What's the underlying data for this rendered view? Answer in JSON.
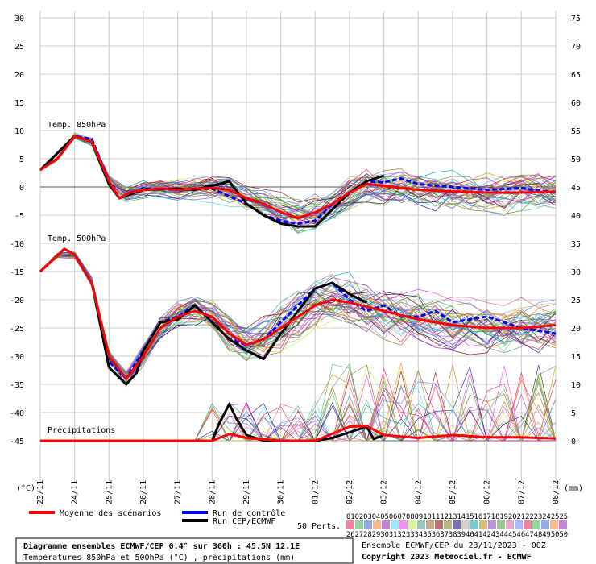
{
  "chart_data": {
    "type": "line",
    "x_dates": [
      "23/11",
      "24/11",
      "25/11",
      "26/11",
      "27/11",
      "28/11",
      "29/11",
      "30/11",
      "01/12",
      "02/12",
      "03/12",
      "04/12",
      "05/12",
      "06/12",
      "07/12",
      "08/12"
    ],
    "left_ticks": [
      "30",
      "25",
      "20",
      "15",
      "10",
      "5",
      "0",
      "-5",
      "-10",
      "-15",
      "-20",
      "-25",
      "-30",
      "-35",
      "-40",
      "-45"
    ],
    "right_ticks": [
      "75",
      "70",
      "65",
      "60",
      "55",
      "50",
      "45",
      "40",
      "35",
      "30",
      "25",
      "20",
      "15",
      "10",
      "5",
      "0"
    ],
    "left_unit": "(°C)",
    "right_unit": "(mm)",
    "left_ylim": [
      -45,
      30
    ],
    "right_ylim": [
      0,
      75
    ],
    "panel_labels": {
      "t850": "Temp. 850hPa",
      "t500": "Temp. 500hPa",
      "precip": "Précipitations"
    },
    "series": [
      {
        "name": "Moyenne des scénarios",
        "color": "#ff0000",
        "panel": "t850",
        "points": [
          [
            0,
            3
          ],
          [
            0.5,
            5
          ],
          [
            1,
            9
          ],
          [
            1.5,
            8
          ],
          [
            2,
            1
          ],
          [
            2.3,
            -2
          ],
          [
            2.6,
            -1
          ],
          [
            3,
            -0.5
          ],
          [
            3.5,
            -0.3
          ],
          [
            4,
            -0.5
          ],
          [
            4.5,
            -0.3
          ],
          [
            5,
            -0.2
          ],
          [
            5.5,
            -0.5
          ],
          [
            6,
            -2
          ],
          [
            6.5,
            -3
          ],
          [
            7,
            -4.5
          ],
          [
            7.5,
            -5.5
          ],
          [
            8,
            -4.5
          ],
          [
            8.5,
            -3
          ],
          [
            9,
            -1
          ],
          [
            9.5,
            0.5
          ],
          [
            10,
            0.2
          ],
          [
            11,
            -0.5
          ],
          [
            12,
            -0.8
          ],
          [
            13,
            -1
          ],
          [
            14,
            -1
          ],
          [
            15,
            -0.8
          ]
        ]
      },
      {
        "name": "Run de contrôle",
        "color": "#0000ff",
        "panel": "t850",
        "points": [
          [
            0,
            3
          ],
          [
            1,
            9
          ],
          [
            1.5,
            8.5
          ],
          [
            2,
            1
          ],
          [
            2.3,
            -2
          ],
          [
            3,
            -0.3
          ],
          [
            4,
            -0.5
          ],
          [
            5,
            -0.3
          ],
          [
            6,
            -3
          ],
          [
            6.5,
            -5
          ],
          [
            7,
            -6
          ],
          [
            7.5,
            -6.5
          ],
          [
            8,
            -6
          ],
          [
            8.5,
            -3
          ],
          [
            9,
            -1
          ],
          [
            9.5,
            1
          ],
          [
            10,
            0.8
          ],
          [
            10.5,
            1.5
          ],
          [
            11,
            0.5
          ],
          [
            12,
            0
          ],
          [
            13,
            -0.5
          ],
          [
            14,
            -0.2
          ],
          [
            15,
            -1
          ]
        ]
      },
      {
        "name": "Run CEP/ECMWF",
        "color": "#000000",
        "panel": "t850",
        "points": [
          [
            0,
            3
          ],
          [
            1,
            9
          ],
          [
            1.5,
            8
          ],
          [
            2,
            0.5
          ],
          [
            2.3,
            -2
          ],
          [
            3,
            -0.5
          ],
          [
            4,
            -0.3
          ],
          [
            4.5,
            -0.5
          ],
          [
            5.2,
            0.5
          ],
          [
            5.5,
            1
          ],
          [
            6,
            -3
          ],
          [
            6.5,
            -5
          ],
          [
            7,
            -6.5
          ],
          [
            7.5,
            -7
          ],
          [
            8,
            -7
          ],
          [
            8.5,
            -4
          ],
          [
            9,
            -1
          ],
          [
            9.5,
            1
          ],
          [
            10,
            2
          ]
        ]
      },
      {
        "name": "Moyenne des scénarios",
        "color": "#ff0000",
        "panel": "t500",
        "points": [
          [
            0,
            -15
          ],
          [
            0.7,
            -11
          ],
          [
            1,
            -12
          ],
          [
            1.5,
            -17
          ],
          [
            2,
            -30
          ],
          [
            2.5,
            -34
          ],
          [
            3,
            -30
          ],
          [
            3.5,
            -25
          ],
          [
            4,
            -23
          ],
          [
            4.5,
            -22
          ],
          [
            5,
            -23
          ],
          [
            5.5,
            -26
          ],
          [
            6,
            -28
          ],
          [
            6.5,
            -27
          ],
          [
            7,
            -25
          ],
          [
            7.5,
            -23
          ],
          [
            8,
            -21
          ],
          [
            8.5,
            -20
          ],
          [
            9,
            -20.5
          ],
          [
            10,
            -22
          ],
          [
            11,
            -23.5
          ],
          [
            12,
            -24.5
          ],
          [
            13,
            -25
          ],
          [
            14,
            -25
          ],
          [
            15,
            -24.5
          ]
        ]
      },
      {
        "name": "Run de contrôle",
        "color": "#0000ff",
        "panel": "t500",
        "points": [
          [
            0,
            -15
          ],
          [
            0.7,
            -11
          ],
          [
            1,
            -12
          ],
          [
            1.5,
            -17
          ],
          [
            2,
            -31
          ],
          [
            2.5,
            -34
          ],
          [
            3,
            -29
          ],
          [
            3.5,
            -24
          ],
          [
            4,
            -23
          ],
          [
            4.5,
            -21
          ],
          [
            5,
            -24
          ],
          [
            5.5,
            -27
          ],
          [
            6,
            -28
          ],
          [
            6.5,
            -27
          ],
          [
            7,
            -24
          ],
          [
            7.5,
            -21
          ],
          [
            8,
            -18
          ],
          [
            8.5,
            -17
          ],
          [
            9,
            -20
          ],
          [
            9.5,
            -22
          ],
          [
            10,
            -21
          ],
          [
            10.5,
            -23
          ],
          [
            11,
            -23
          ],
          [
            11.5,
            -22
          ],
          [
            12,
            -24
          ],
          [
            13,
            -23
          ],
          [
            14,
            -25
          ],
          [
            15,
            -26
          ]
        ]
      },
      {
        "name": "Run CEP/ECMWF",
        "color": "#000000",
        "panel": "t500",
        "points": [
          [
            0,
            -15
          ],
          [
            0.7,
            -11
          ],
          [
            1,
            -12
          ],
          [
            1.5,
            -17
          ],
          [
            2,
            -32
          ],
          [
            2.5,
            -35
          ],
          [
            2.8,
            -33
          ],
          [
            3,
            -29
          ],
          [
            3.5,
            -24
          ],
          [
            4,
            -23.5
          ],
          [
            4.5,
            -21
          ],
          [
            5,
            -24
          ],
          [
            5.5,
            -27
          ],
          [
            6,
            -29
          ],
          [
            6.5,
            -30.5
          ],
          [
            7,
            -26
          ],
          [
            7.5,
            -22
          ],
          [
            8,
            -18
          ],
          [
            8.5,
            -17
          ],
          [
            9,
            -19
          ],
          [
            9.5,
            -20.5
          ]
        ]
      },
      {
        "name": "Moyenne des scénarios",
        "color": "#ff0000",
        "panel": "precip",
        "points": [
          [
            0,
            0
          ],
          [
            5,
            0
          ],
          [
            5.5,
            1.2
          ],
          [
            6,
            0.5
          ],
          [
            7,
            0
          ],
          [
            8,
            0
          ],
          [
            9,
            2.5
          ],
          [
            9.5,
            2.6
          ],
          [
            10,
            1
          ],
          [
            11,
            0.5
          ],
          [
            12,
            1
          ],
          [
            13,
            0.6
          ],
          [
            14,
            0.6
          ],
          [
            15,
            0.4
          ]
        ]
      },
      {
        "name": "Run CEP/ECMWF",
        "color": "#000000",
        "panel": "precip",
        "points": [
          [
            0,
            0
          ],
          [
            5,
            0
          ],
          [
            5.2,
            3
          ],
          [
            5.5,
            6.5
          ],
          [
            5.7,
            4
          ],
          [
            6,
            1
          ],
          [
            6.5,
            0
          ],
          [
            8,
            0
          ],
          [
            8.5,
            0.5
          ],
          [
            9,
            1.5
          ],
          [
            9.5,
            2.5
          ],
          [
            9.7,
            0.3
          ],
          [
            10,
            1
          ]
        ]
      }
    ]
  },
  "legend": {
    "mean_label": "Moyenne des scénarios",
    "mean_color": "#ff0000",
    "control_label": "Run de contrôle",
    "control_color": "#0000ff",
    "oper_label": "Run CEP/ECMWF",
    "oper_color": "#000000",
    "perts_label": "50 Perts.",
    "perts_row1": "0102030405060708091011121314151617181920212223242525",
    "perts_row2": "2627282930313233343536373839404142434445464748495050"
  },
  "footer": {
    "box_title": "Diagramme ensembles ECMWF/CEP 0.4° sur 360h : 45.5N 12.1E",
    "box_subtitle": "Températures 850hPa et 500hPa (°C) , précipitations (mm)",
    "run_info": "Ensemble ECMWF/CEP du 23/11/2023 - 00Z",
    "copyright": "Copyright 2023 Meteociel.fr - ECMWF"
  },
  "palette": [
    "#e6194b",
    "#3cb44b",
    "#4363d8",
    "#f58231",
    "#911eb4",
    "#42d4f4",
    "#f032e6",
    "#bfef45",
    "#469990",
    "#9a6324",
    "#800000",
    "#808000",
    "#000075",
    "#a9a9a9",
    "#00a0a0",
    "#c08000",
    "#8040c0",
    "#40a040",
    "#d06090",
    "#6080ff"
  ]
}
